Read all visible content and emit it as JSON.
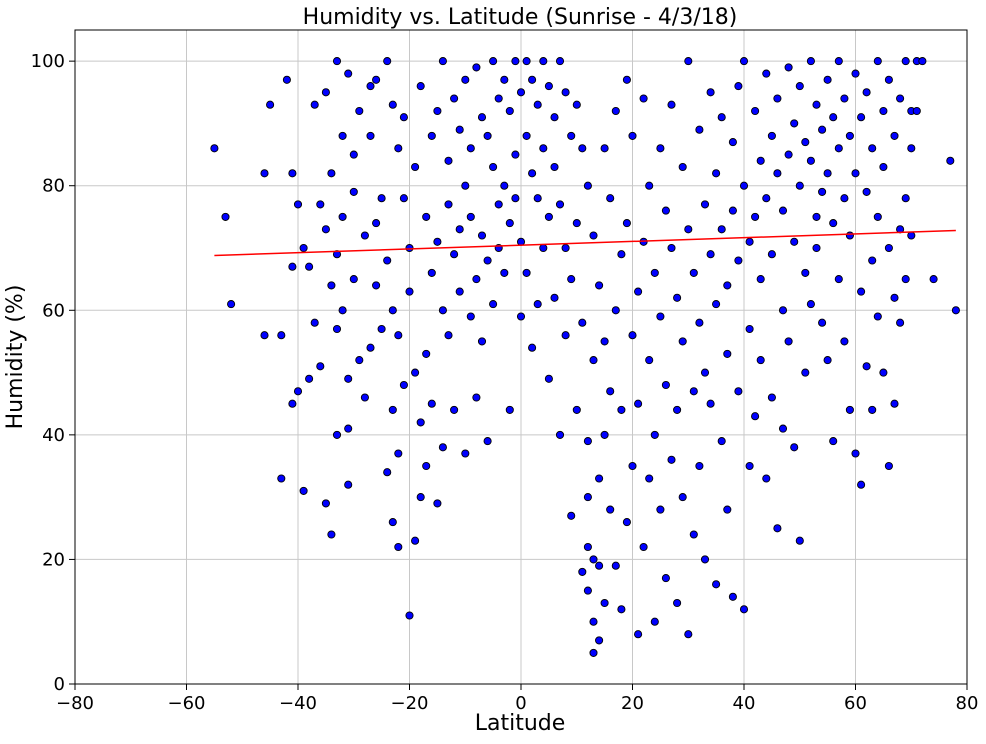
{
  "chart_data": {
    "type": "scatter",
    "title": "Humidity vs. Latitude (Sunrise - 4/3/18)",
    "xlabel": "Latitude",
    "ylabel": "Humidity (%)",
    "xlim": [
      -80,
      80
    ],
    "ylim": [
      0,
      105
    ],
    "xticks": [
      -80,
      -60,
      -40,
      -20,
      0,
      20,
      40,
      60,
      80
    ],
    "yticks": [
      0,
      20,
      40,
      60,
      80,
      100
    ],
    "xtick_labels": [
      "−80",
      "−60",
      "−40",
      "−20",
      "0",
      "20",
      "40",
      "60",
      "80"
    ],
    "ytick_labels": [
      "0",
      "20",
      "40",
      "60",
      "80",
      "100"
    ],
    "grid": true,
    "marker_color": "#0000ff",
    "marker_edge_color": "#000000",
    "trend_color": "#ff0000",
    "trendline": {
      "x": [
        -55,
        78
      ],
      "y": [
        68.8,
        72.8
      ]
    },
    "points": [
      [
        -55,
        86
      ],
      [
        -53,
        75
      ],
      [
        -52,
        61
      ],
      [
        -46,
        56
      ],
      [
        -46,
        82
      ],
      [
        -45,
        93
      ],
      [
        -43,
        33
      ],
      [
        -43,
        56
      ],
      [
        -42,
        97
      ],
      [
        -41,
        82
      ],
      [
        -41,
        67
      ],
      [
        -41,
        45
      ],
      [
        -40,
        77
      ],
      [
        -40,
        47
      ],
      [
        -39,
        31
      ],
      [
        -39,
        70
      ],
      [
        -38,
        67
      ],
      [
        -38,
        49
      ],
      [
        -37,
        93
      ],
      [
        -37,
        58
      ],
      [
        -36,
        77
      ],
      [
        -36,
        51
      ],
      [
        -35,
        95
      ],
      [
        -35,
        73
      ],
      [
        -35,
        29
      ],
      [
        -34,
        82
      ],
      [
        -34,
        64
      ],
      [
        -34,
        24
      ],
      [
        -33,
        100
      ],
      [
        -33,
        69
      ],
      [
        -33,
        57
      ],
      [
        -33,
        40
      ],
      [
        -32,
        88
      ],
      [
        -32,
        75
      ],
      [
        -32,
        60
      ],
      [
        -31,
        98
      ],
      [
        -31,
        49
      ],
      [
        -31,
        32
      ],
      [
        -31,
        41
      ],
      [
        -30,
        85
      ],
      [
        -30,
        79
      ],
      [
        -30,
        65
      ],
      [
        -29,
        92
      ],
      [
        -29,
        52
      ],
      [
        -28,
        72
      ],
      [
        -28,
        46
      ],
      [
        -27,
        96
      ],
      [
        -27,
        88
      ],
      [
        -27,
        54
      ],
      [
        -26,
        97
      ],
      [
        -26,
        74
      ],
      [
        -26,
        64
      ],
      [
        -25,
        78
      ],
      [
        -25,
        57
      ],
      [
        -24,
        100
      ],
      [
        -24,
        68
      ],
      [
        -24,
        34
      ],
      [
        -23,
        93
      ],
      [
        -23,
        60
      ],
      [
        -23,
        26
      ],
      [
        -23,
        44
      ],
      [
        -22,
        86
      ],
      [
        -22,
        56
      ],
      [
        -22,
        22
      ],
      [
        -22,
        37
      ],
      [
        -21,
        78
      ],
      [
        -21,
        48
      ],
      [
        -21,
        91
      ],
      [
        -20,
        70
      ],
      [
        -20,
        63
      ],
      [
        -20,
        11
      ],
      [
        -19,
        23
      ],
      [
        -19,
        50
      ],
      [
        -19,
        83
      ],
      [
        -18,
        96
      ],
      [
        -18,
        42
      ],
      [
        -18,
        30
      ],
      [
        -17,
        75
      ],
      [
        -17,
        53
      ],
      [
        -17,
        35
      ],
      [
        -16,
        88
      ],
      [
        -16,
        66
      ],
      [
        -16,
        45
      ],
      [
        -15,
        92
      ],
      [
        -15,
        71
      ],
      [
        -15,
        29
      ],
      [
        -14,
        100
      ],
      [
        -14,
        60
      ],
      [
        -14,
        38
      ],
      [
        -13,
        84
      ],
      [
        -13,
        77
      ],
      [
        -13,
        56
      ],
      [
        -12,
        94
      ],
      [
        -12,
        69
      ],
      [
        -12,
        44
      ],
      [
        -11,
        89
      ],
      [
        -11,
        73
      ],
      [
        -11,
        63
      ],
      [
        -10,
        97
      ],
      [
        -10,
        80
      ],
      [
        -10,
        37
      ],
      [
        -9,
        86
      ],
      [
        -9,
        75
      ],
      [
        -9,
        59
      ],
      [
        -8,
        99
      ],
      [
        -8,
        65
      ],
      [
        -8,
        46
      ],
      [
        -7,
        91
      ],
      [
        -7,
        72
      ],
      [
        -7,
        55
      ],
      [
        -6,
        88
      ],
      [
        -6,
        68
      ],
      [
        -6,
        39
      ],
      [
        -5,
        100
      ],
      [
        -5,
        83
      ],
      [
        -5,
        61
      ],
      [
        -4,
        94
      ],
      [
        -4,
        77
      ],
      [
        -4,
        70
      ],
      [
        -3,
        97
      ],
      [
        -3,
        80
      ],
      [
        -3,
        66
      ],
      [
        -2,
        92
      ],
      [
        -2,
        74
      ],
      [
        -2,
        44
      ],
      [
        -1,
        100
      ],
      [
        -1,
        85
      ],
      [
        -1,
        78
      ],
      [
        0,
        95
      ],
      [
        0,
        71
      ],
      [
        0,
        59
      ],
      [
        1,
        100
      ],
      [
        1,
        88
      ],
      [
        1,
        66
      ],
      [
        2,
        97
      ],
      [
        2,
        82
      ],
      [
        2,
        54
      ],
      [
        3,
        93
      ],
      [
        3,
        78
      ],
      [
        3,
        61
      ],
      [
        4,
        100
      ],
      [
        4,
        86
      ],
      [
        4,
        70
      ],
      [
        5,
        96
      ],
      [
        5,
        75
      ],
      [
        5,
        49
      ],
      [
        6,
        91
      ],
      [
        6,
        83
      ],
      [
        6,
        62
      ],
      [
        7,
        100
      ],
      [
        7,
        77
      ],
      [
        7,
        40
      ],
      [
        8,
        95
      ],
      [
        8,
        70
      ],
      [
        8,
        56
      ],
      [
        9,
        88
      ],
      [
        9,
        65
      ],
      [
        9,
        27
      ],
      [
        10,
        93
      ],
      [
        10,
        74
      ],
      [
        10,
        44
      ],
      [
        11,
        86
      ],
      [
        11,
        58
      ],
      [
        11,
        18
      ],
      [
        12,
        80
      ],
      [
        12,
        39
      ],
      [
        12,
        30
      ],
      [
        12,
        22
      ],
      [
        12,
        15
      ],
      [
        13,
        72
      ],
      [
        13,
        52
      ],
      [
        13,
        20
      ],
      [
        13,
        10
      ],
      [
        13,
        5
      ],
      [
        14,
        64
      ],
      [
        14,
        33
      ],
      [
        14,
        19
      ],
      [
        14,
        7
      ],
      [
        15,
        86
      ],
      [
        15,
        55
      ],
      [
        15,
        40
      ],
      [
        15,
        13
      ],
      [
        16,
        78
      ],
      [
        16,
        47
      ],
      [
        16,
        28
      ],
      [
        17,
        92
      ],
      [
        17,
        60
      ],
      [
        17,
        19
      ],
      [
        18,
        69
      ],
      [
        18,
        44
      ],
      [
        18,
        12
      ],
      [
        19,
        97
      ],
      [
        19,
        74
      ],
      [
        19,
        26
      ],
      [
        20,
        88
      ],
      [
        20,
        56
      ],
      [
        20,
        35
      ],
      [
        21,
        63
      ],
      [
        21,
        45
      ],
      [
        21,
        8
      ],
      [
        22,
        94
      ],
      [
        22,
        71
      ],
      [
        22,
        22
      ],
      [
        23,
        80
      ],
      [
        23,
        52
      ],
      [
        23,
        33
      ],
      [
        24,
        66
      ],
      [
        24,
        40
      ],
      [
        24,
        10
      ],
      [
        25,
        86
      ],
      [
        25,
        59
      ],
      [
        25,
        28
      ],
      [
        26,
        76
      ],
      [
        26,
        48
      ],
      [
        26,
        17
      ],
      [
        27,
        93
      ],
      [
        27,
        70
      ],
      [
        27,
        36
      ],
      [
        28,
        62
      ],
      [
        28,
        44
      ],
      [
        28,
        13
      ],
      [
        29,
        83
      ],
      [
        29,
        55
      ],
      [
        29,
        30
      ],
      [
        30,
        100
      ],
      [
        30,
        73
      ],
      [
        30,
        8
      ],
      [
        31,
        66
      ],
      [
        31,
        47
      ],
      [
        31,
        24
      ],
      [
        32,
        89
      ],
      [
        32,
        58
      ],
      [
        32,
        35
      ],
      [
        33,
        77
      ],
      [
        33,
        50
      ],
      [
        33,
        20
      ],
      [
        34,
        95
      ],
      [
        34,
        69
      ],
      [
        34,
        45
      ],
      [
        35,
        82
      ],
      [
        35,
        61
      ],
      [
        35,
        16
      ],
      [
        36,
        91
      ],
      [
        36,
        73
      ],
      [
        36,
        39
      ],
      [
        37,
        64
      ],
      [
        37,
        53
      ],
      [
        37,
        28
      ],
      [
        38,
        87
      ],
      [
        38,
        76
      ],
      [
        38,
        14
      ],
      [
        39,
        96
      ],
      [
        39,
        68
      ],
      [
        39,
        47
      ],
      [
        40,
        100
      ],
      [
        40,
        80
      ],
      [
        40,
        12
      ],
      [
        41,
        71
      ],
      [
        41,
        57
      ],
      [
        41,
        35
      ],
      [
        42,
        92
      ],
      [
        42,
        75
      ],
      [
        42,
        43
      ],
      [
        43,
        84
      ],
      [
        43,
        65
      ],
      [
        43,
        52
      ],
      [
        44,
        98
      ],
      [
        44,
        78
      ],
      [
        44,
        33
      ],
      [
        45,
        88
      ],
      [
        45,
        69
      ],
      [
        45,
        46
      ],
      [
        46,
        94
      ],
      [
        46,
        82
      ],
      [
        46,
        25
      ],
      [
        47,
        76
      ],
      [
        47,
        60
      ],
      [
        47,
        41
      ],
      [
        48,
        99
      ],
      [
        48,
        85
      ],
      [
        48,
        55
      ],
      [
        49,
        90
      ],
      [
        49,
        71
      ],
      [
        49,
        38
      ],
      [
        50,
        96
      ],
      [
        50,
        80
      ],
      [
        50,
        23
      ],
      [
        51,
        87
      ],
      [
        51,
        66
      ],
      [
        51,
        50
      ],
      [
        52,
        100
      ],
      [
        52,
        84
      ],
      [
        52,
        61
      ],
      [
        53,
        93
      ],
      [
        53,
        75
      ],
      [
        53,
        70
      ],
      [
        54,
        89
      ],
      [
        54,
        79
      ],
      [
        54,
        58
      ],
      [
        55,
        97
      ],
      [
        55,
        82
      ],
      [
        55,
        52
      ],
      [
        56,
        91
      ],
      [
        56,
        74
      ],
      [
        56,
        39
      ],
      [
        57,
        100
      ],
      [
        57,
        86
      ],
      [
        57,
        65
      ],
      [
        58,
        94
      ],
      [
        58,
        78
      ],
      [
        58,
        55
      ],
      [
        59,
        88
      ],
      [
        59,
        72
      ],
      [
        59,
        44
      ],
      [
        60,
        98
      ],
      [
        60,
        82
      ],
      [
        60,
        37
      ],
      [
        61,
        91
      ],
      [
        61,
        63
      ],
      [
        61,
        32
      ],
      [
        62,
        95
      ],
      [
        62,
        79
      ],
      [
        62,
        51
      ],
      [
        63,
        86
      ],
      [
        63,
        68
      ],
      [
        63,
        44
      ],
      [
        64,
        100
      ],
      [
        64,
        75
      ],
      [
        64,
        59
      ],
      [
        65,
        92
      ],
      [
        65,
        83
      ],
      [
        65,
        50
      ],
      [
        66,
        97
      ],
      [
        66,
        70
      ],
      [
        66,
        35
      ],
      [
        67,
        88
      ],
      [
        67,
        62
      ],
      [
        67,
        45
      ],
      [
        68,
        94
      ],
      [
        68,
        73
      ],
      [
        68,
        58
      ],
      [
        69,
        100
      ],
      [
        69,
        78
      ],
      [
        69,
        65
      ],
      [
        70,
        92
      ],
      [
        70,
        86
      ],
      [
        70,
        72
      ],
      [
        71,
        100
      ],
      [
        71,
        92
      ],
      [
        72,
        100
      ],
      [
        74,
        65
      ],
      [
        77,
        84
      ],
      [
        78,
        60
      ]
    ]
  }
}
